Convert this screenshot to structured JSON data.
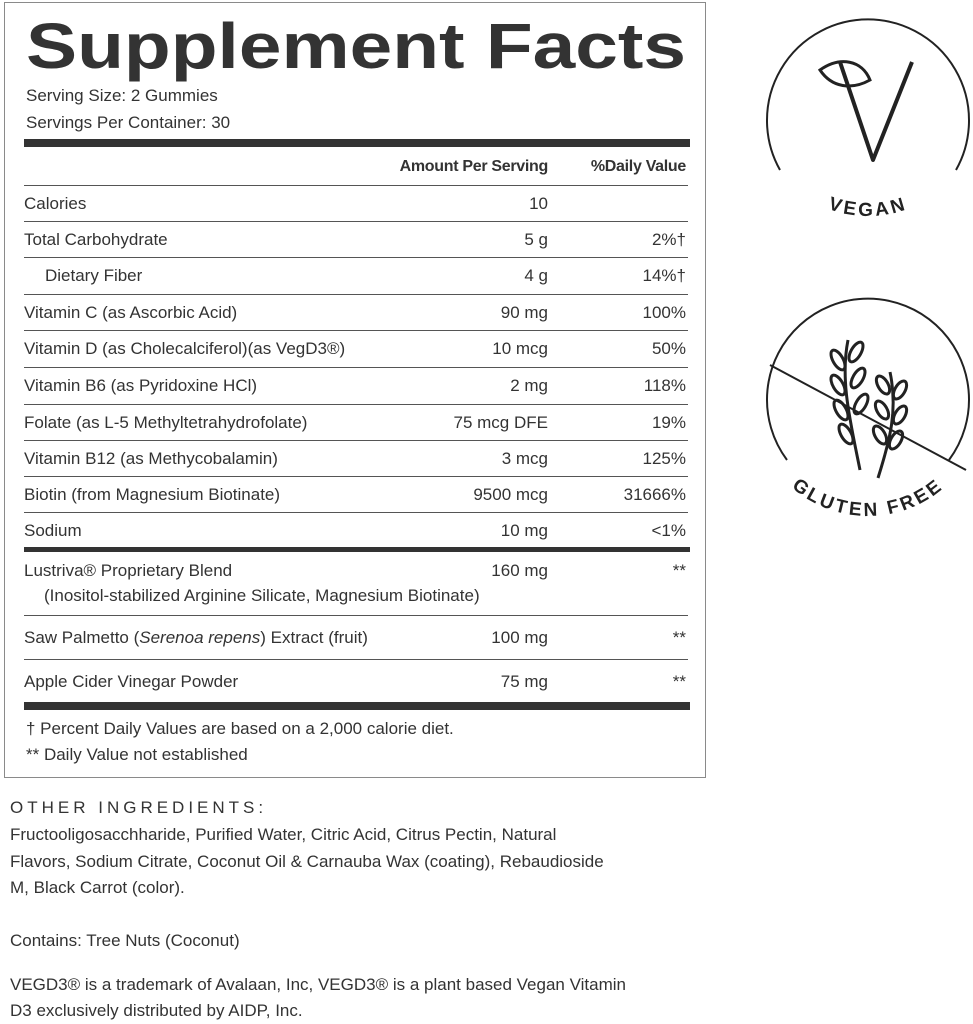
{
  "panel": {
    "title": "Supplement Facts",
    "serving_size": "Serving Size: 2 Gummies",
    "servings_per_container": "Servings Per Container: 30",
    "header": [
      "Amount Per Serving",
      "%Daily Value"
    ],
    "rows": [
      [
        "Calories",
        "10",
        ""
      ],
      [
        "Total Carbohydrate",
        "5 g",
        "2%†"
      ],
      [
        "Dietary Fiber",
        "4 g",
        "14%†"
      ],
      [
        "Vitamin C (as Ascorbic Acid)",
        "90 mg",
        "100%"
      ],
      [
        "Vitamin D (as Cholecalciferol)(as VegD3®)",
        "10 mcg",
        "50%"
      ],
      [
        "Vitamin B6 (as Pyridoxine HCl)",
        "2 mg",
        "118%"
      ],
      [
        "Folate (as L-5 Methyltetrahydrofolate)",
        "75 mcg DFE",
        "19%"
      ],
      [
        "Vitamin B12 (as Methycobalamin)",
        "3 mcg",
        "125%"
      ],
      [
        "Biotin (from Magnesium Biotinate)",
        "9500 mcg",
        "31666%"
      ],
      [
        "Sodium",
        "10 mg",
        "<1%"
      ]
    ],
    "blend": {
      "name": "Lustriva® Proprietary Blend",
      "detail": "(Inositol-stabilized Arginine Silicate, Magnesium Biotinate)",
      "amount": "160 mg",
      "dv": "**"
    },
    "saw_palmetto": {
      "name_before": "Saw Palmetto (",
      "name_italic": "Serenoa repens",
      "name_after": ") Extract (fruit)",
      "amount": "100 mg",
      "dv": "**"
    },
    "apple_cider": {
      "name": "Apple Cider Vinegar Powder",
      "amount": "75 mg",
      "dv": "**"
    },
    "footnotes": [
      "† Percent Daily Values are based on a 2,000 calorie diet.",
      "** Daily Value not established"
    ]
  },
  "badges": [
    "VEGAN",
    "GLUTEN FREE"
  ],
  "other_ingredients": {
    "heading": "OTHER INGREDIENTS:",
    "lines": [
      "Fructooligosacchharide, Purified Water, Citric Acid, Citrus Pectin, Natural",
      "Flavors, Sodium Citrate, Coconut Oil & Carnauba Wax (coating), Rebaudioside",
      "M, Black Carrot (color)."
    ]
  },
  "contains": "Contains: Tree Nuts (Coconut)",
  "trademark": [
    "VEGD3® is a trademark of Avalaan, Inc, VEGD3® is a plant based Vegan Vitamin",
    "D3 exclusively distributed by AIDP, Inc."
  ]
}
